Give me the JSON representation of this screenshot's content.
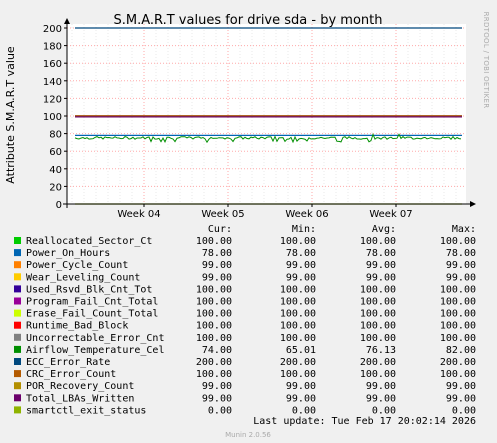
{
  "chart_data": {
    "type": "line",
    "title": "S.M.A.R.T values for drive sda - by month",
    "ylabel": "Attribute S.M.A.R.T value",
    "side_label": "RRDTOOL / TOBI OETIKER",
    "ylim": [
      0,
      200
    ],
    "yticks": [
      0,
      20,
      40,
      60,
      80,
      100,
      120,
      140,
      160,
      180,
      200
    ],
    "xticks": [
      "Week 04",
      "Week 05",
      "Week 06",
      "Week 07"
    ],
    "grid": true,
    "legend_headers": [
      "Cur:",
      "Min:",
      "Avg:",
      "Max:"
    ],
    "series": [
      {
        "name": "Reallocated_Sector_Ct",
        "color": "#00cc00",
        "cur": "100.00",
        "min": "100.00",
        "avg": "100.00",
        "max": "100.00"
      },
      {
        "name": "Power_On_Hours",
        "color": "#0066b3",
        "cur": "78.00",
        "min": "78.00",
        "avg": "78.00",
        "max": "78.00"
      },
      {
        "name": "Power_Cycle_Count",
        "color": "#ff8000",
        "cur": "99.00",
        "min": "99.00",
        "avg": "99.00",
        "max": "99.00"
      },
      {
        "name": "Wear_Leveling_Count",
        "color": "#ffcc00",
        "cur": "99.00",
        "min": "99.00",
        "avg": "99.00",
        "max": "99.00"
      },
      {
        "name": "Used_Rsvd_Blk_Cnt_Tot",
        "color": "#330099",
        "cur": "100.00",
        "min": "100.00",
        "avg": "100.00",
        "max": "100.00"
      },
      {
        "name": "Program_Fail_Cnt_Total",
        "color": "#990099",
        "cur": "100.00",
        "min": "100.00",
        "avg": "100.00",
        "max": "100.00"
      },
      {
        "name": "Erase_Fail_Count_Total",
        "color": "#ccff00",
        "cur": "100.00",
        "min": "100.00",
        "avg": "100.00",
        "max": "100.00"
      },
      {
        "name": "Runtime_Bad_Block",
        "color": "#ff0000",
        "cur": "100.00",
        "min": "100.00",
        "avg": "100.00",
        "max": "100.00"
      },
      {
        "name": "Uncorrectable_Error_Cnt",
        "color": "#808080",
        "cur": "100.00",
        "min": "100.00",
        "avg": "100.00",
        "max": "100.00"
      },
      {
        "name": "Airflow_Temperature_Cel",
        "color": "#008f00",
        "cur": "74.00",
        "min": "65.01",
        "avg": "76.13",
        "max": "82.00"
      },
      {
        "name": "ECC_Error_Rate",
        "color": "#00487d",
        "cur": "200.00",
        "min": "200.00",
        "avg": "200.00",
        "max": "200.00"
      },
      {
        "name": "CRC_Error_Count",
        "color": "#b35a00",
        "cur": "100.00",
        "min": "100.00",
        "avg": "100.00",
        "max": "100.00"
      },
      {
        "name": "POR_Recovery_Count",
        "color": "#b38f00",
        "cur": "99.00",
        "min": "99.00",
        "avg": "99.00",
        "max": "99.00"
      },
      {
        "name": "Total_LBAs_Written",
        "color": "#6b006b",
        "cur": "99.00",
        "min": "99.00",
        "avg": "99.00",
        "max": "99.00"
      },
      {
        "name": "smartctl_exit_status",
        "color": "#8fb300",
        "cur": "0.00",
        "min": "0.00",
        "avg": "0.00",
        "max": "0.00"
      }
    ],
    "last_update": "Last update: Tue Feb 17 20:02:14 2026",
    "footer": "Munin 2.0.56"
  }
}
